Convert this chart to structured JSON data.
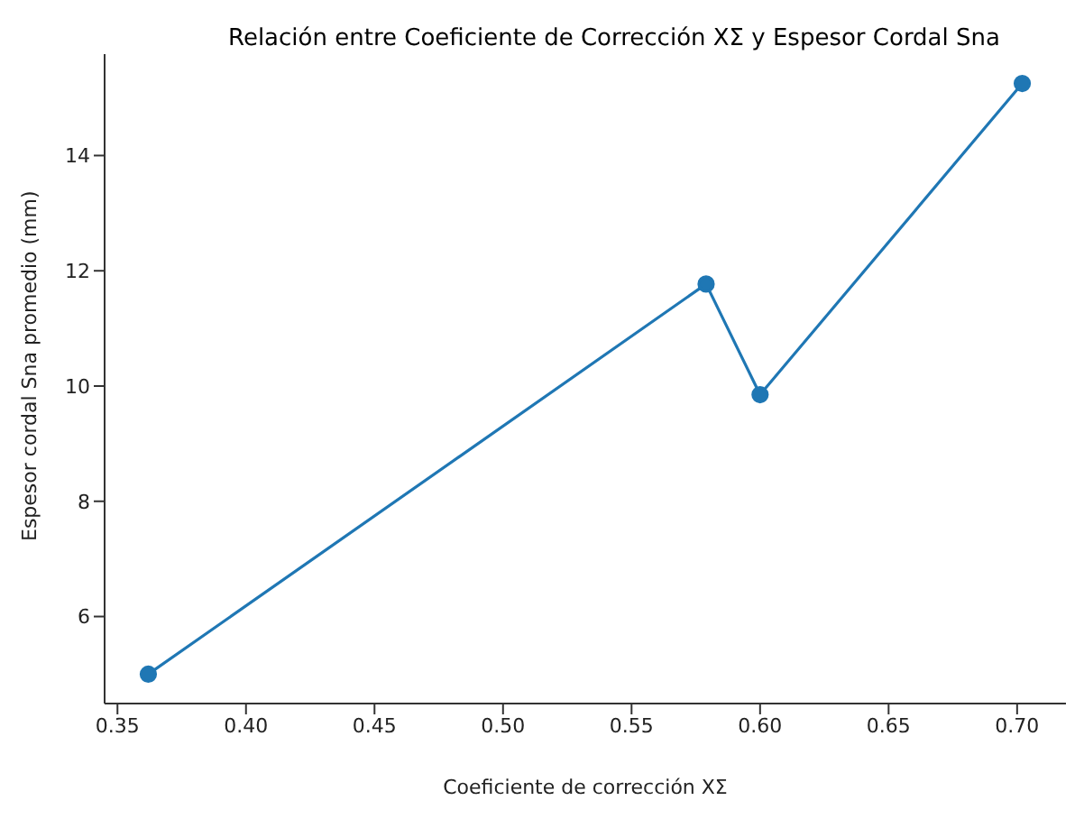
{
  "chart_data": {
    "type": "line",
    "title": "Relación entre Coeficiente de Corrección XΣ y Espesor Cordal Sna",
    "xlabel": "Coeficiente de corrección XΣ",
    "ylabel": "Espesor cordal Sna promedio (mm)",
    "x": [
      0.362,
      0.579,
      0.6,
      0.702
    ],
    "series": [
      {
        "color": "#1f77b4",
        "values": [
          5.0,
          11.77,
          9.85,
          15.25
        ]
      }
    ],
    "xlim": [
      0.345,
      0.719
    ],
    "xticks": [
      0.35,
      {
        "value": 0.4,
        "label": "0.40"
      },
      0.45,
      {
        "value": 0.5,
        "label": "0.50"
      },
      0.55,
      {
        "value": 0.6,
        "label": "0.60"
      },
      0.65,
      {
        "value": 0.7,
        "label": "0.70"
      }
    ],
    "ylim": [
      4.49,
      15.76
    ],
    "yticks": [
      6,
      8,
      10,
      12,
      14
    ],
    "marker": "circle",
    "grid": false,
    "legend": false
  }
}
